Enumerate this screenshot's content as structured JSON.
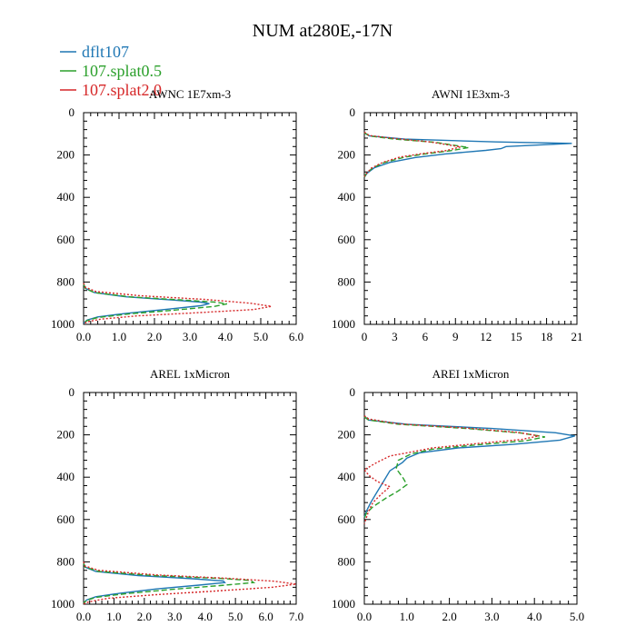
{
  "figure_title": "NUM at280E,-17N",
  "legend": [
    {
      "label": "dflt107",
      "color": "#1f77b4",
      "dash": "solid"
    },
    {
      "label": "107.splat0.5",
      "color": "#2ca02c",
      "dash": "dashed"
    },
    {
      "label": "107.splat2.0",
      "color": "#d62728",
      "dash": "dotted"
    }
  ],
  "chart_data": [
    {
      "type": "line",
      "title": "AWNC  1E7xm-3",
      "xlim": [
        0,
        6
      ],
      "ylim": [
        1000,
        0
      ],
      "xticks": [
        "0.0",
        "1.0",
        "2.0",
        "3.0",
        "4.0",
        "5.0",
        "6.0"
      ],
      "yticks": [
        "0",
        "200",
        "400",
        "600",
        "800",
        "1000"
      ],
      "series": [
        {
          "name": "dflt107",
          "points": [
            [
              0,
              810
            ],
            [
              0.05,
              830
            ],
            [
              0.3,
              850
            ],
            [
              1.2,
              870
            ],
            [
              2.5,
              885
            ],
            [
              3.3,
              895
            ],
            [
              3.55,
              902
            ],
            [
              3.3,
              912
            ],
            [
              2.4,
              928
            ],
            [
              1.2,
              948
            ],
            [
              0.4,
              965
            ],
            [
              0.1,
              980
            ],
            [
              0,
              995
            ]
          ]
        },
        {
          "name": "107.splat0.5",
          "points": [
            [
              0,
              810
            ],
            [
              0.05,
              830
            ],
            [
              0.3,
              850
            ],
            [
              1.3,
              870
            ],
            [
              2.8,
              885
            ],
            [
              3.7,
              895
            ],
            [
              4.05,
              903
            ],
            [
              3.7,
              915
            ],
            [
              2.6,
              932
            ],
            [
              1.3,
              950
            ],
            [
              0.4,
              968
            ],
            [
              0.1,
              982
            ],
            [
              0,
              995
            ]
          ]
        },
        {
          "name": "107.splat2.0",
          "points": [
            [
              0,
              805
            ],
            [
              0.05,
              825
            ],
            [
              0.35,
              845
            ],
            [
              1.6,
              865
            ],
            [
              3.4,
              882
            ],
            [
              4.7,
              900
            ],
            [
              5.3,
              915
            ],
            [
              4.8,
              930
            ],
            [
              3.2,
              945
            ],
            [
              1.5,
              960
            ],
            [
              0.5,
              975
            ],
            [
              0.1,
              988
            ],
            [
              0,
              998
            ]
          ]
        }
      ]
    },
    {
      "type": "line",
      "title": "AWNI  1E3xm-3",
      "xlim": [
        0,
        21
      ],
      "ylim": [
        1000,
        0
      ],
      "xticks": [
        "0",
        "3",
        "6",
        "9",
        "12",
        "15",
        "18",
        "21"
      ],
      "yticks": [
        "0",
        "200",
        "400",
        "600",
        "800",
        "1000"
      ],
      "series": [
        {
          "name": "dflt107",
          "points": [
            [
              0,
              95
            ],
            [
              0.5,
              110
            ],
            [
              4,
              125
            ],
            [
              13,
              138
            ],
            [
              20.5,
              145
            ],
            [
              14,
              160
            ],
            [
              13.5,
              170
            ],
            [
              12,
              178
            ],
            [
              8,
              195
            ],
            [
              5,
              212
            ],
            [
              2.5,
              235
            ],
            [
              1,
              260
            ],
            [
              0.3,
              285
            ],
            [
              0,
              305
            ]
          ]
        },
        {
          "name": "107.splat0.5",
          "points": [
            [
              0,
              95
            ],
            [
              0.5,
              110
            ],
            [
              3,
              125
            ],
            [
              7,
              140
            ],
            [
              10.3,
              165
            ],
            [
              8.5,
              180
            ],
            [
              6,
              195
            ],
            [
              4,
              210
            ],
            [
              2,
              235
            ],
            [
              0.8,
              262
            ],
            [
              0.2,
              288
            ],
            [
              0,
              305
            ]
          ]
        },
        {
          "name": "107.splat2.0",
          "points": [
            [
              0,
              92
            ],
            [
              0.5,
              108
            ],
            [
              3,
              122
            ],
            [
              6.5,
              138
            ],
            [
              9.5,
              162
            ],
            [
              8,
              180
            ],
            [
              5.5,
              195
            ],
            [
              3.5,
              210
            ],
            [
              1.8,
              235
            ],
            [
              0.7,
              262
            ],
            [
              0.2,
              288
            ],
            [
              0,
              302
            ]
          ]
        }
      ]
    },
    {
      "type": "line",
      "title": "AREL  1xMicron",
      "xlim": [
        0,
        7
      ],
      "ylim": [
        1000,
        0
      ],
      "xticks": [
        "0.0",
        "1.0",
        "2.0",
        "3.0",
        "4.0",
        "5.0",
        "6.0",
        "7.0"
      ],
      "yticks": [
        "0",
        "200",
        "400",
        "600",
        "800",
        "1000"
      ],
      "series": [
        {
          "name": "dflt107",
          "points": [
            [
              0,
              805
            ],
            [
              0.05,
              825
            ],
            [
              0.4,
              845
            ],
            [
              1.8,
              865
            ],
            [
              3.6,
              880
            ],
            [
              4.6,
              890
            ],
            [
              4.65,
              898
            ],
            [
              3.8,
              910
            ],
            [
              2.4,
              928
            ],
            [
              1.2,
              948
            ],
            [
              0.4,
              965
            ],
            [
              0.1,
              980
            ],
            [
              0,
              995
            ]
          ]
        },
        {
          "name": "107.splat0.5",
          "points": [
            [
              0,
              805
            ],
            [
              0.05,
              825
            ],
            [
              0.5,
              845
            ],
            [
              2.3,
              865
            ],
            [
              4.5,
              878
            ],
            [
              5.5,
              888
            ],
            [
              5.6,
              898
            ],
            [
              4.5,
              912
            ],
            [
              2.9,
              930
            ],
            [
              1.4,
              950
            ],
            [
              0.4,
              968
            ],
            [
              0.1,
              982
            ],
            [
              0,
              995
            ]
          ]
        },
        {
          "name": "107.splat2.0",
          "points": [
            [
              0,
              800
            ],
            [
              0.05,
              820
            ],
            [
              0.5,
              840
            ],
            [
              2.4,
              862
            ],
            [
              4.8,
              878
            ],
            [
              6.3,
              892
            ],
            [
              7.0,
              905
            ],
            [
              6.2,
              920
            ],
            [
              4.3,
              938
            ],
            [
              2.4,
              955
            ],
            [
              0.8,
              972
            ],
            [
              0.2,
              988
            ],
            [
              0,
              998
            ]
          ]
        }
      ]
    },
    {
      "type": "line",
      "title": "AREI  1xMicron",
      "xlim": [
        0,
        5
      ],
      "ylim": [
        1000,
        0
      ],
      "xticks": [
        "0.0",
        "1.0",
        "2.0",
        "3.0",
        "4.0",
        "5.0"
      ],
      "yticks": [
        "0",
        "200",
        "400",
        "600",
        "800",
        "1000"
      ],
      "series": [
        {
          "name": "dflt107",
          "points": [
            [
              0,
              115
            ],
            [
              0.1,
              130
            ],
            [
              1,
              150
            ],
            [
              3,
              170
            ],
            [
              4.5,
              190
            ],
            [
              4.95,
              205
            ],
            [
              4.6,
              225
            ],
            [
              3.5,
              245
            ],
            [
              2.2,
              262
            ],
            [
              1.3,
              285
            ],
            [
              1,
              310
            ],
            [
              0.9,
              330
            ],
            [
              0.6,
              370
            ],
            [
              0.45,
              420
            ],
            [
              0.3,
              470
            ],
            [
              0.15,
              520
            ],
            [
              0.05,
              560
            ],
            [
              0,
              590
            ]
          ]
        },
        {
          "name": "107.splat0.5",
          "points": [
            [
              0,
              115
            ],
            [
              0.1,
              130
            ],
            [
              0.8,
              150
            ],
            [
              2.4,
              170
            ],
            [
              3.7,
              192
            ],
            [
              4.25,
              210
            ],
            [
              3.8,
              228
            ],
            [
              2.6,
              248
            ],
            [
              1.6,
              268
            ],
            [
              1.1,
              290
            ],
            [
              0.8,
              320
            ],
            [
              0.75,
              360
            ],
            [
              0.9,
              400
            ],
            [
              1.0,
              435
            ],
            [
              0.8,
              465
            ],
            [
              0.5,
              500
            ],
            [
              0.2,
              540
            ],
            [
              0.05,
              570
            ],
            [
              0,
              595
            ]
          ]
        },
        {
          "name": "107.splat2.0",
          "points": [
            [
              0,
              110
            ],
            [
              0.1,
              125
            ],
            [
              0.8,
              148
            ],
            [
              2.4,
              168
            ],
            [
              3.6,
              188
            ],
            [
              4.1,
              205
            ],
            [
              3.7,
              222
            ],
            [
              2.6,
              242
            ],
            [
              1.6,
              262
            ],
            [
              1.0,
              285
            ],
            [
              0.6,
              300
            ],
            [
              0.3,
              330
            ],
            [
              0,
              365
            ],
            [
              0.1,
              390
            ],
            [
              0.3,
              420
            ],
            [
              0.6,
              445
            ],
            [
              0.4,
              480
            ],
            [
              0.2,
              520
            ],
            [
              0.1,
              560
            ],
            [
              0,
              620
            ]
          ]
        }
      ]
    }
  ]
}
